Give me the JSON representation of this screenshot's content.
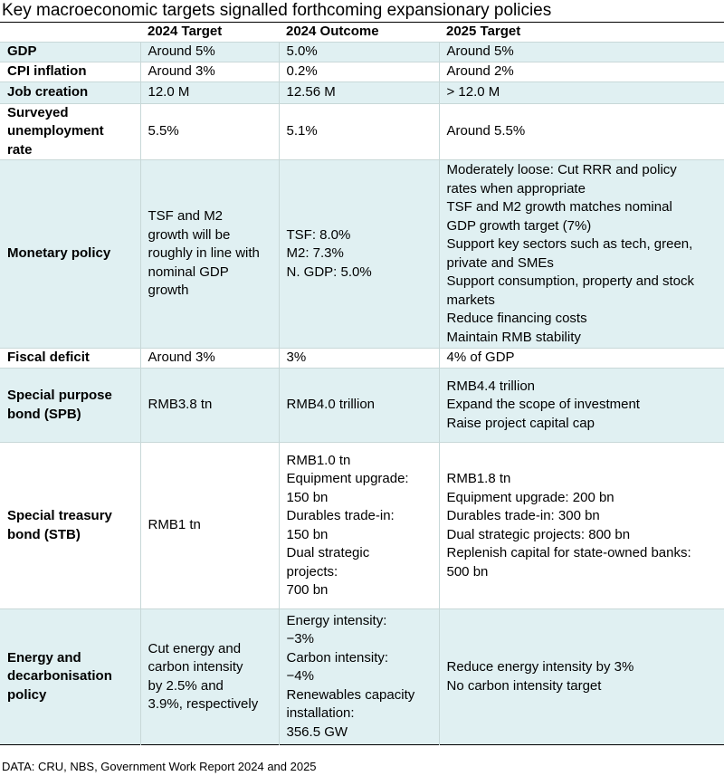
{
  "title": "Key macroeconomic targets signalled forthcoming expansionary policies",
  "headers": [
    "",
    "2024 Target",
    "2024 Outcome",
    "2025 Target"
  ],
  "rows": [
    {
      "label": [
        "GDP"
      ],
      "target_2024": [
        "Around 5%"
      ],
      "outcome_2024": [
        "5.0%"
      ],
      "target_2025": [
        "Around 5%"
      ]
    },
    {
      "label": [
        "CPI inflation"
      ],
      "target_2024": [
        "Around 3%"
      ],
      "outcome_2024": [
        "0.2%"
      ],
      "target_2025": [
        "Around 2%"
      ]
    },
    {
      "label": [
        "Job creation"
      ],
      "target_2024": [
        "12.0 M"
      ],
      "outcome_2024": [
        "12.56 M"
      ],
      "target_2025": [
        "> 12.0 M"
      ]
    },
    {
      "label": [
        "Surveyed",
        "unemployment",
        "rate"
      ],
      "target_2024": [
        "5.5%"
      ],
      "outcome_2024": [
        "5.1%"
      ],
      "target_2025": [
        "Around 5.5%"
      ]
    },
    {
      "label": [
        "Monetary policy"
      ],
      "target_2024": [
        "TSF and M2",
        "growth will be",
        "roughly in line with",
        "nominal GDP",
        "growth"
      ],
      "outcome_2024": [
        "TSF: 8.0%",
        "M2: 7.3%",
        "N. GDP: 5.0%"
      ],
      "target_2025": [
        "Moderately loose: Cut RRR and policy",
        "rates when appropriate",
        "TSF and M2 growth matches nominal",
        "GDP growth target (7%)",
        "Support key sectors such as tech, green,",
        "private and SMEs",
        "Support consumption, property and stock",
        "markets",
        "Reduce financing costs",
        "Maintain RMB stability"
      ]
    },
    {
      "label": [
        "Fiscal deficit"
      ],
      "target_2024": [
        "Around 3%"
      ],
      "outcome_2024": [
        "3%"
      ],
      "target_2025": [
        "4% of GDP"
      ]
    },
    {
      "label": [
        "Special purpose",
        "bond (SPB)"
      ],
      "target_2024": [
        "RMB3.8 tn"
      ],
      "outcome_2024": [
        "RMB4.0 trillion"
      ],
      "target_2025": [
        "RMB4.4 trillion",
        "Expand the scope of investment",
        "Raise project capital cap"
      ]
    },
    {
      "label": [
        "Special treasury",
        "bond (STB)"
      ],
      "target_2024": [
        "RMB1 tn"
      ],
      "outcome_2024": [
        "RMB1.0 tn",
        "Equipment upgrade:",
        "150 bn",
        "Durables trade-in:",
        "150 bn",
        "Dual strategic",
        "projects:",
        "700 bn"
      ],
      "target_2025": [
        "RMB1.8 tn",
        "Equipment upgrade: 200 bn",
        "Durables trade-in: 300 bn",
        "Dual strategic projects: 800 bn",
        "Replenish capital for state-owned banks:",
        "500 bn"
      ]
    },
    {
      "label": [
        "Energy and",
        "decarbonisation",
        "policy"
      ],
      "target_2024": [
        "Cut energy and",
        "carbon intensity",
        "by 2.5% and",
        "3.9%, respectively"
      ],
      "outcome_2024": [
        "Energy intensity:",
        "−3%",
        "Carbon intensity:",
        "−4%",
        "Renewables capacity",
        "installation:",
        "356.5 GW"
      ],
      "target_2025": [
        "Reduce energy intensity by 3%",
        "No carbon intensity target"
      ]
    }
  ],
  "source": "DATA: CRU, NBS, Government Work Report 2024 and 2025"
}
